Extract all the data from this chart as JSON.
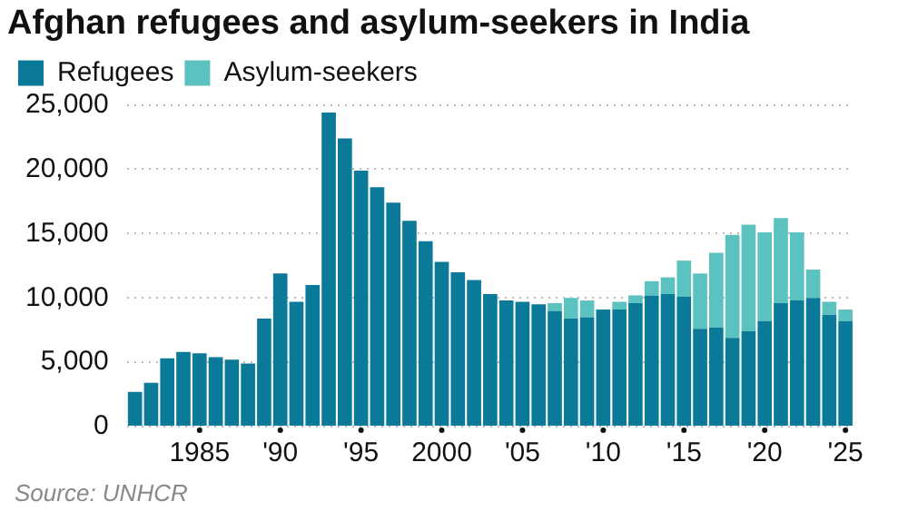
{
  "chart_data": {
    "type": "bar",
    "title": "Afghan refugees and asylum-seekers in India",
    "categories": [
      null,
      null,
      null,
      null,
      "1985",
      null,
      null,
      null,
      null,
      "'90",
      null,
      null,
      null,
      null,
      "'95",
      null,
      null,
      null,
      null,
      "2000",
      null,
      null,
      null,
      null,
      "'05",
      null,
      null,
      null,
      null,
      "'10",
      null,
      null,
      null,
      null,
      "'15",
      null,
      null,
      null,
      null,
      "'20",
      null,
      null,
      null,
      null,
      "'25"
    ],
    "series": [
      {
        "name": "Refugees",
        "color": "#0b7a99",
        "values": [
          2700,
          3400,
          5300,
          5800,
          5700,
          5400,
          5200,
          4900,
          8400,
          11900,
          9700,
          11000,
          24400,
          22400,
          19900,
          18600,
          17400,
          16000,
          14400,
          12800,
          12000,
          11400,
          10300,
          9800,
          9700,
          9500,
          9000,
          8400,
          8500,
          9100,
          9100,
          9600,
          10200,
          10300,
          10100,
          7600,
          7700,
          6900,
          7400,
          8200,
          9600,
          9800,
          10000,
          8700,
          8200
        ]
      },
      {
        "name": "Asylum-seekers",
        "color": "#5cc2c0",
        "values": [
          0,
          0,
          0,
          0,
          0,
          0,
          0,
          0,
          0,
          0,
          0,
          0,
          0,
          0,
          0,
          0,
          0,
          0,
          0,
          0,
          0,
          0,
          0,
          0,
          0,
          0,
          600,
          1600,
          1300,
          0,
          600,
          600,
          1100,
          1300,
          2800,
          4300,
          5800,
          8000,
          8300,
          6900,
          6600,
          5300,
          2200,
          1000,
          900
        ]
      }
    ],
    "stacked": true,
    "ylim": [
      0,
      25000
    ],
    "yticks": [
      0,
      {
        "value": 5000,
        "label": "5,000"
      },
      {
        "value": 10000,
        "label": "10,000"
      },
      {
        "value": 15000,
        "label": "15,000"
      },
      {
        "value": 20000,
        "label": "20,000"
      },
      {
        "value": 25000,
        "label": "25,000"
      }
    ],
    "grid": "y",
    "legend": "top left",
    "annotations": [
      "Source: UNHCR"
    ]
  }
}
